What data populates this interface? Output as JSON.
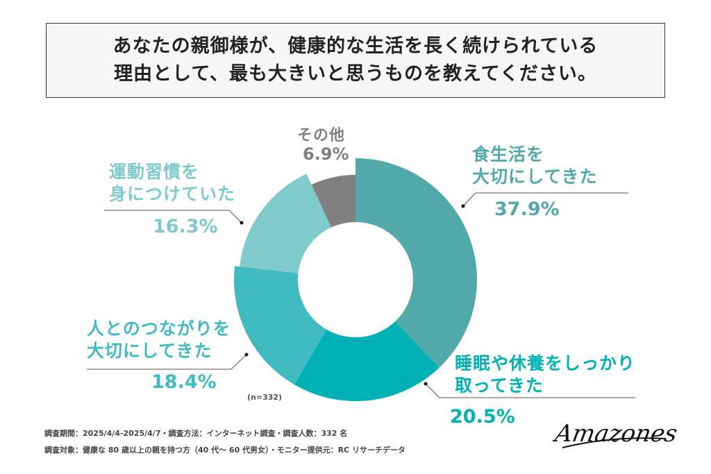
{
  "title": {
    "line1": "あなたの親御様が、健康的な生活を長く続けられている",
    "line2": "理由として、最も大きいと思うものを教えてください。"
  },
  "chart_data": {
    "type": "pie",
    "donut": true,
    "title": "あなたの親御様が、健康的な生活を長く続けられている理由として、最も大きいと思うものを教えてください。",
    "slices": [
      {
        "label_lines": [
          "食生活を",
          "大切にしてきた"
        ],
        "value": 37.9,
        "pct_text": "37.9%",
        "color": "#52a9a9"
      },
      {
        "label_lines": [
          "睡眠や休養をしっかり",
          "取ってきた"
        ],
        "value": 20.5,
        "pct_text": "20.5%",
        "color": "#00b2b5"
      },
      {
        "label_lines": [
          "人とのつながりを",
          "大切にしてきた"
        ],
        "value": 18.4,
        "pct_text": "18.4%",
        "color": "#40bbbf"
      },
      {
        "label_lines": [
          "運動習慣を",
          "身につけていた"
        ],
        "value": 16.3,
        "pct_text": "16.3%",
        "color": "#7fcacb"
      },
      {
        "label_lines": [
          "その他"
        ],
        "value": 6.9,
        "pct_text": "6.9%",
        "color": "#808080"
      }
    ],
    "sample_note": "(n=332)"
  },
  "footer": {
    "line1": "調査期間：2025/4/4-2025/4/7・調査方法：インターネット調査・調査人数：332 名",
    "line2": "調査対象：健康な 80 歳以上の親を持つ方（40 代～ 60 代男女）・モニター提供元：RC リサーチデータ"
  },
  "logo": "Amazones"
}
